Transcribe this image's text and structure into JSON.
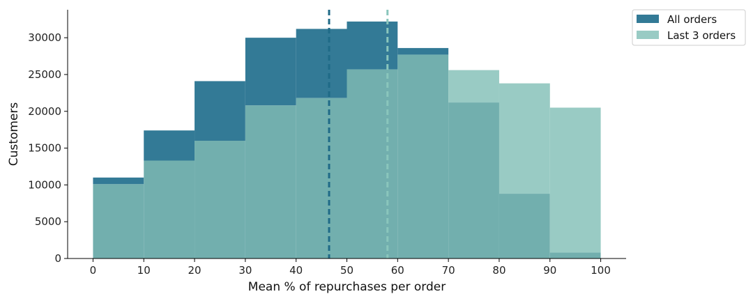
{
  "chart_data": {
    "type": "bar",
    "subtype": "overlapping-histogram",
    "title": "",
    "xlabel": "Mean % of repurchases per order",
    "ylabel": "Customers",
    "xlim": [
      -5,
      105
    ],
    "ylim": [
      0,
      33800
    ],
    "xticks": [
      0,
      10,
      20,
      30,
      40,
      50,
      60,
      70,
      80,
      90,
      100
    ],
    "yticks": [
      0,
      5000,
      10000,
      15000,
      20000,
      25000,
      30000
    ],
    "grid": false,
    "legend_position": "top-right, outside plot",
    "bin_edges": [
      0,
      10,
      20,
      30,
      40,
      50,
      60,
      70,
      80,
      90,
      100
    ],
    "series": [
      {
        "name": "All orders",
        "color": "#337a96",
        "values": [
          11000,
          17400,
          24100,
          30000,
          31200,
          32200,
          28600,
          21200,
          8800,
          800
        ],
        "mean": 46.5
      },
      {
        "name": "Last 3 orders",
        "color": "#99cbc4",
        "values": [
          10100,
          13300,
          16000,
          20800,
          21800,
          25700,
          27700,
          25600,
          23800,
          20500
        ],
        "mean": 58
      }
    ],
    "overlap_color": "#72afae",
    "mean_line_style": "dashed"
  }
}
